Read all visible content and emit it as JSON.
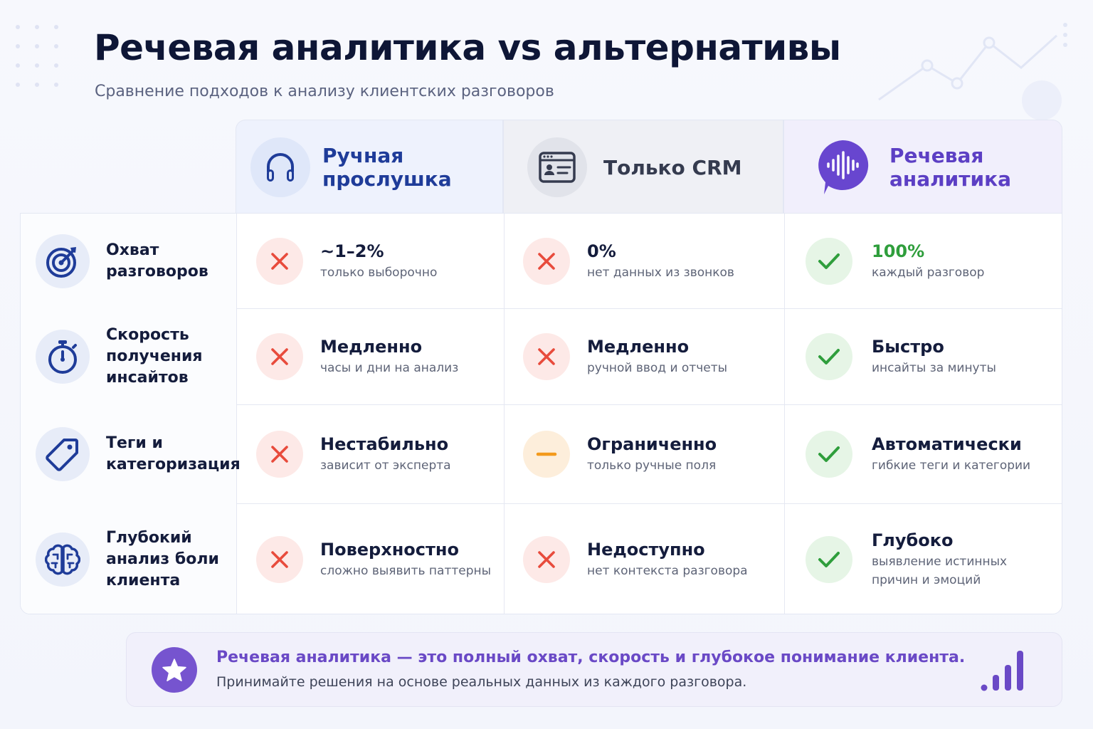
{
  "title": "Речевая аналитика vs альтернативы",
  "subtitle": "Сравнение подходов к анализу клиентских разговоров",
  "columns": [
    {
      "label": "Ручная прослушка",
      "icon": "headphones-icon",
      "color": "#1f3c99"
    },
    {
      "label": "Только CRM",
      "icon": "crm-card-icon",
      "color": "#353b4f"
    },
    {
      "label": "Речевая аналитика",
      "icon": "voice-analytics-icon",
      "color": "#5c3fc4"
    }
  ],
  "rows": [
    {
      "label": "Охват разговоров",
      "icon": "target-icon",
      "cells": [
        {
          "status": "bad",
          "main": "~1–2%",
          "sub": "только выборочно"
        },
        {
          "status": "bad",
          "main": "0%",
          "sub": "нет данных из звонков"
        },
        {
          "status": "good",
          "main": "100%",
          "sub": "каждый разговор"
        }
      ]
    },
    {
      "label": "Скорость получения инсайтов",
      "icon": "stopwatch-icon",
      "cells": [
        {
          "status": "bad",
          "main": "Медленно",
          "sub": "часы и дни на анализ"
        },
        {
          "status": "bad",
          "main": "Медленно",
          "sub": "ручной ввод и отчеты"
        },
        {
          "status": "good",
          "main": "Быстро",
          "sub": "инсайты за минуты"
        }
      ]
    },
    {
      "label": "Теги и категоризация",
      "icon": "tag-icon",
      "cells": [
        {
          "status": "bad",
          "main": "Нестабильно",
          "sub": "зависит от эксперта"
        },
        {
          "status": "mid",
          "main": "Ограниченно",
          "sub": "только ручные поля"
        },
        {
          "status": "good",
          "main": "Автоматически",
          "sub": "гибкие теги и категории"
        }
      ]
    },
    {
      "label": "Глубокий анализ боли клиента",
      "icon": "brain-icon",
      "cells": [
        {
          "status": "bad",
          "main": "Поверхностно",
          "sub": "сложно выявить паттерны"
        },
        {
          "status": "bad",
          "main": "Недоступно",
          "sub": "нет контекста разговора"
        },
        {
          "status": "good",
          "main": "Глубоко",
          "sub": "выявление истинных причин и эмоций"
        }
      ]
    }
  ],
  "footer": {
    "main": "Речевая аналитика — это полный охват, скорость и глубокое понимание клиента.",
    "sub": "Принимайте решения на основе реальных данных из каждого разговора.",
    "icon": "star-icon",
    "chart_icon": "bar-chart-icon"
  },
  "colors": {
    "bad": "#e84b3c",
    "mid": "#f39a1c",
    "good": "#2f9e3c",
    "accent": "#7654cf"
  }
}
